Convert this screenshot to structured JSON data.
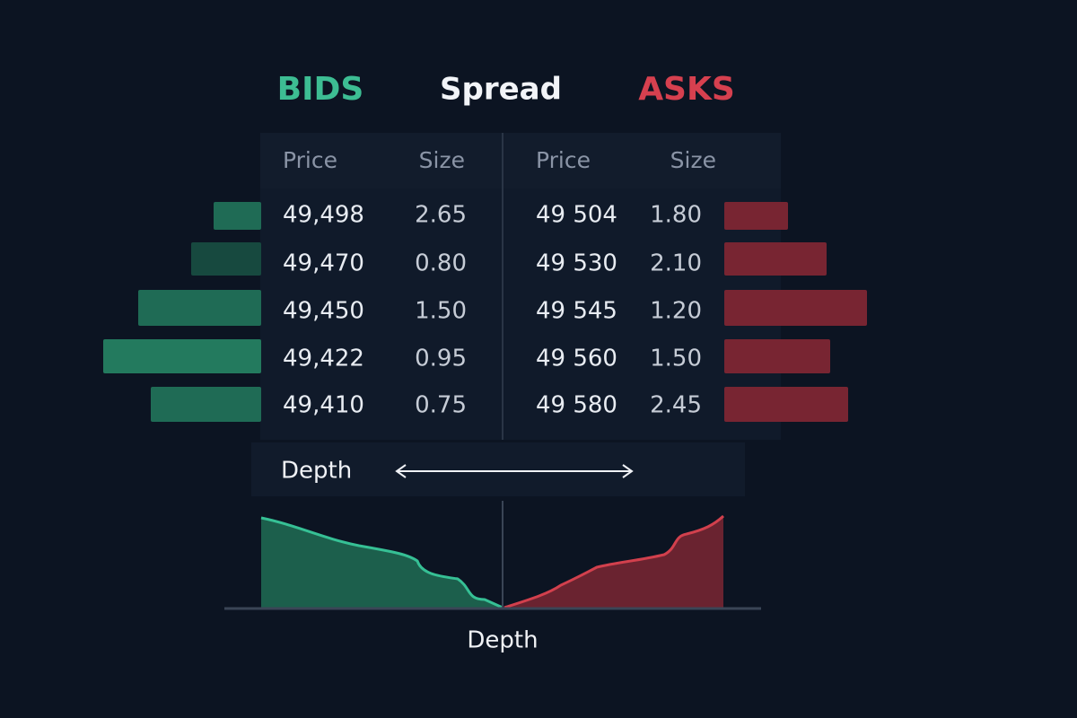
{
  "header": {
    "bids": "BIDS",
    "spread": "Spread",
    "asks": "ASKS"
  },
  "bids": {
    "columns": [
      "Price",
      "Size"
    ],
    "rows": [
      [
        "49,498",
        "2.65"
      ],
      [
        "49,470",
        "0.80"
      ],
      [
        "49,450",
        "1.50"
      ],
      [
        "49,422",
        "0.95"
      ],
      [
        "49,410",
        "0.75"
      ]
    ]
  },
  "asks": {
    "columns": [
      "Price",
      "Size"
    ],
    "rows": [
      [
        "49 504",
        "1.80"
      ],
      [
        "49 530",
        "2.10"
      ],
      [
        "49 545",
        "1.20"
      ],
      [
        "49 560",
        "1.50"
      ],
      [
        "49 580",
        "2.45"
      ]
    ]
  },
  "depth_bar": {
    "label": "Depth"
  },
  "depth_chart": {
    "label": "Depth"
  }
}
